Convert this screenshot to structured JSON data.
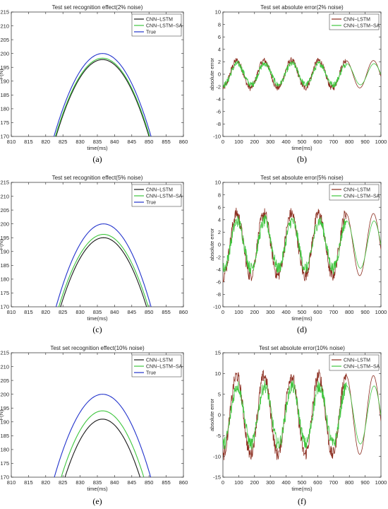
{
  "chart_data": [
    {
      "panel": "(a)",
      "type": "line",
      "title": "Test set recognition effect(2% noise)",
      "xlabel": "time(ms)",
      "ylabel": "F(N)",
      "xlim": [
        810,
        860
      ],
      "ylim": [
        170,
        215
      ],
      "xticks": [
        810,
        815,
        820,
        825,
        830,
        835,
        840,
        845,
        850,
        855,
        860
      ],
      "yticks": [
        170,
        175,
        180,
        185,
        190,
        195,
        200,
        205,
        210,
        215
      ],
      "legend_position": "top-right",
      "series": [
        {
          "name": "CNN−LSTM",
          "color": "#1a1a1a",
          "peak": [
            836.5,
            197.8
          ],
          "x": [
            823.8,
            850.8
          ],
          "y": [
            170,
            170
          ]
        },
        {
          "name": "CNN−LSTM−SA",
          "color": "#3ec63e",
          "peak": [
            836.5,
            198.3
          ],
          "x": [
            823.6,
            851.0
          ],
          "y": [
            170,
            170
          ]
        },
        {
          "name": "True",
          "color": "#2233cc",
          "peak": [
            836.5,
            200.0
          ],
          "x": [
            823.0,
            851.2
          ],
          "y": [
            170,
            170
          ]
        }
      ]
    },
    {
      "panel": "(b)",
      "type": "line",
      "title": "Test set absolute error(2% noise)",
      "xlabel": "time(ms)",
      "ylabel": "absolute error",
      "xlim": [
        0,
        1000
      ],
      "ylim": [
        -10,
        10
      ],
      "xticks": [
        0,
        100,
        200,
        300,
        400,
        500,
        600,
        700,
        800,
        900,
        1000
      ],
      "yticks": [
        -10,
        -8,
        -6,
        -4,
        -2,
        0,
        2,
        4,
        6,
        8,
        10
      ],
      "legend_position": "top-right",
      "period": 173,
      "series": [
        {
          "name": "CNN−LSTM",
          "color": "#8b2d1f",
          "amplitude": 2.2,
          "noise": 0.5
        },
        {
          "name": "CNN−LSTM−SA",
          "color": "#3ec63e",
          "amplitude": 1.7,
          "noise": 0.5
        }
      ]
    },
    {
      "panel": "(c)",
      "type": "line",
      "title": "Test set recognition effect(5% noise)",
      "xlabel": "time(ms)",
      "ylabel": "F(N)",
      "xlim": [
        810,
        860
      ],
      "ylim": [
        170,
        215
      ],
      "xticks": [
        810,
        815,
        820,
        825,
        830,
        835,
        840,
        845,
        850,
        855,
        860
      ],
      "yticks": [
        170,
        175,
        180,
        185,
        190,
        195,
        200,
        205,
        210,
        215
      ],
      "legend_position": "top-right",
      "series": [
        {
          "name": "CNN−LSTM",
          "color": "#1a1a1a",
          "peak": [
            836.8,
            195.0
          ],
          "x": [
            824.6,
            849.6
          ],
          "y": [
            170,
            170
          ]
        },
        {
          "name": "CNN−LSTM−SA",
          "color": "#3ec63e",
          "peak": [
            836.8,
            196.2
          ],
          "x": [
            824.2,
            850.2
          ],
          "y": [
            170,
            170
          ]
        },
        {
          "name": "True",
          "color": "#2233cc",
          "peak": [
            836.8,
            200.0
          ],
          "x": [
            823.4,
            851.0
          ],
          "y": [
            170,
            170
          ]
        }
      ]
    },
    {
      "panel": "(d)",
      "type": "line",
      "title": "Test set absolute error(5% noise)",
      "xlabel": "time(ms)",
      "ylabel": "absolute error",
      "xlim": [
        0,
        1000
      ],
      "ylim": [
        -10,
        10
      ],
      "xticks": [
        0,
        100,
        200,
        300,
        400,
        500,
        600,
        700,
        800,
        900,
        1000
      ],
      "yticks": [
        -10,
        -8,
        -6,
        -4,
        -2,
        0,
        2,
        4,
        6,
        8,
        10
      ],
      "legend_position": "top-right",
      "period": 173,
      "series": [
        {
          "name": "CNN−LSTM",
          "color": "#8b2d1f",
          "amplitude": 5.0,
          "noise": 1.0
        },
        {
          "name": "CNN−LSTM−SA",
          "color": "#3ec63e",
          "amplitude": 3.8,
          "noise": 1.0
        }
      ]
    },
    {
      "panel": "(e)",
      "type": "line",
      "title": "Test set recognition effect(10% noise)",
      "xlabel": "time(ms)",
      "ylabel": "F(N)",
      "xlim": [
        810,
        860
      ],
      "ylim": [
        170,
        215
      ],
      "xticks": [
        810,
        815,
        820,
        825,
        830,
        835,
        840,
        845,
        850,
        855,
        860
      ],
      "yticks": [
        170,
        175,
        180,
        185,
        190,
        195,
        200,
        205,
        210,
        215
      ],
      "legend_position": "top-right",
      "series": [
        {
          "name": "CNN−LSTM",
          "color": "#1a1a1a",
          "peak": [
            836.5,
            191.0
          ],
          "x": [
            826.4,
            848.2
          ],
          "y": [
            170,
            170
          ]
        },
        {
          "name": "CNN−LSTM−SA",
          "color": "#3ec63e",
          "peak": [
            836.5,
            194.0
          ],
          "x": [
            825.4,
            849.4
          ],
          "y": [
            170,
            170
          ]
        },
        {
          "name": "True",
          "color": "#2233cc",
          "peak": [
            836.5,
            200.0
          ],
          "x": [
            823.0,
            851.0
          ],
          "y": [
            170,
            170
          ]
        }
      ]
    },
    {
      "panel": "(f)",
      "type": "line",
      "title": "Test set absolute error(10% noise)",
      "xlabel": "time(ms)",
      "ylabel": "absolute error",
      "xlim": [
        0,
        1000
      ],
      "ylim": [
        -15,
        15
      ],
      "xticks": [
        0,
        100,
        200,
        300,
        400,
        500,
        600,
        700,
        800,
        900,
        1000
      ],
      "yticks": [
        -15,
        -10,
        -5,
        0,
        5,
        10,
        15
      ],
      "legend_position": "top-right",
      "period": 173,
      "series": [
        {
          "name": "CNN−LSTM",
          "color": "#8b2d1f",
          "amplitude": 9.5,
          "noise": 1.6
        },
        {
          "name": "CNN−LSTM−SA",
          "color": "#3ec63e",
          "amplitude": 7.0,
          "noise": 1.6
        }
      ]
    }
  ]
}
